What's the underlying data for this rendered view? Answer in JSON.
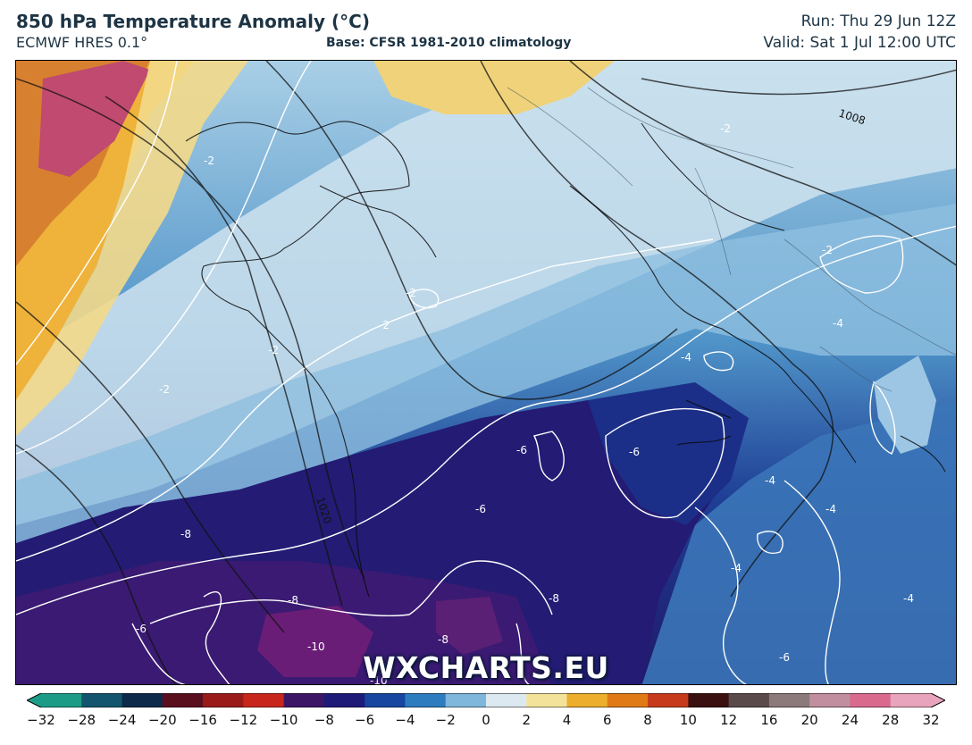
{
  "header": {
    "title": "850 hPa Temperature Anomaly (°C)",
    "model": "ECMWF HRES 0.1°",
    "base": "Base: CFSR 1981-2010 climatology",
    "run": "Run: Thu 29 Jun 12Z",
    "valid": "Valid: Sat 1 Jul 12:00 UTC"
  },
  "watermark": "WXCHARTS.EU",
  "map": {
    "anomaly_contour_labels": [
      "-2",
      "-2",
      "-2",
      "-2",
      "-2",
      "-2",
      "-2",
      "-4",
      "-4",
      "-4",
      "-4",
      "-4",
      "-4",
      "-6",
      "-6",
      "-6",
      "-6",
      "-6",
      "-8",
      "-8",
      "-8",
      "-8",
      "-10",
      "-10"
    ],
    "pressure_labels": [
      "1008",
      "1020"
    ]
  },
  "colorbar": {
    "ticks": [
      "−32",
      "−28",
      "−24",
      "−20",
      "−16",
      "−12",
      "−10",
      "−8",
      "−6",
      "−4",
      "−2",
      "0",
      "2",
      "4",
      "6",
      "8",
      "10",
      "12",
      "16",
      "20",
      "24",
      "28",
      "32"
    ],
    "colors": [
      "#1c9c86",
      "#13556e",
      "#0d2a4a",
      "#5a0f1f",
      "#9a1a1a",
      "#c8261c",
      "#3d1566",
      "#1e1a78",
      "#1646a0",
      "#2e7cc0",
      "#7fb6db",
      "#dde9f1",
      "#f3e39a",
      "#ecae2c",
      "#e07a17",
      "#c73b1c",
      "#3a1010",
      "#5a4a4a",
      "#8c7a7a",
      "#c08e9e",
      "#d96a8e",
      "#e8a4bc"
    ]
  }
}
